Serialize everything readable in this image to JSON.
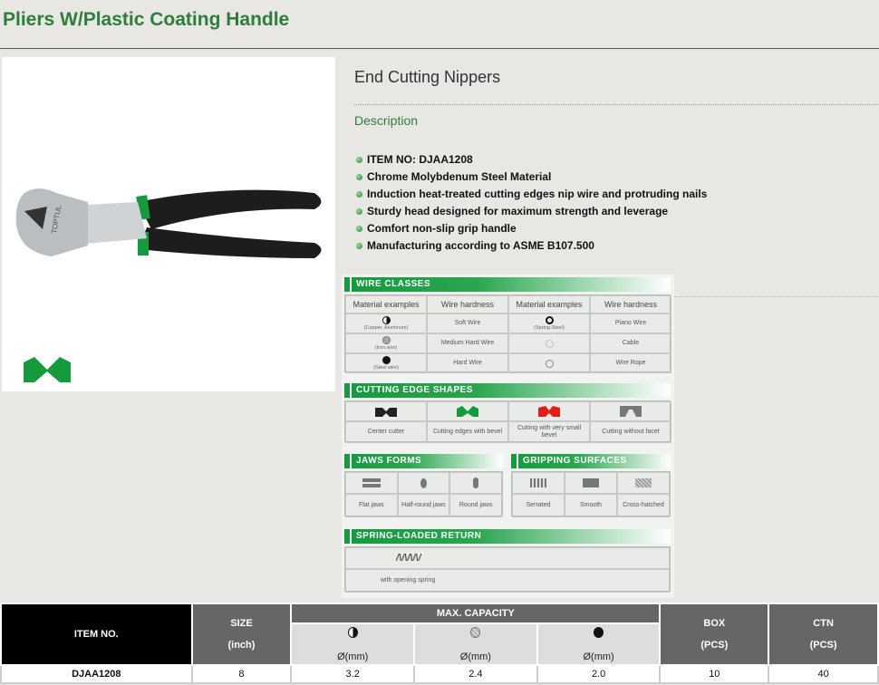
{
  "page": {
    "title": "Pliers W/Plastic Coating Handle"
  },
  "product": {
    "name": "End Cutting Nippers",
    "description_label": "Description",
    "brand_mark": "TOPTUL",
    "features": [
      "ITEM NO: DJAA1208",
      "Chrome Molybdenum Steel Material",
      "Induction heat-treated cutting edges nip wire and protruding nails",
      "Sturdy head designed for maximum strength and leverage",
      "Comfort non-slip grip handle",
      "Manufacturing according to ASME B107.500"
    ]
  },
  "infographic": {
    "wire_classes": {
      "title": "WIRE CLASSES",
      "headers": [
        "Material examples",
        "Wire hardness",
        "Material examples",
        "Wire hardness"
      ],
      "rows": [
        [
          "(Copper, Aluminum)",
          "Soft Wire",
          "(Spring Steel)",
          "Piano Wire"
        ],
        [
          "(Iron wire)",
          "Medium Hard Wire",
          "",
          "Cable"
        ],
        [
          "(Steel wire)",
          "Hard Wire",
          "",
          "Wire Rope"
        ]
      ]
    },
    "cutting_edge_shapes": {
      "title": "CUTTING EDGE SHAPES",
      "items": [
        {
          "label": "Center cutter",
          "color": "#222222"
        },
        {
          "label": "Cutting edges with bevel",
          "color": "#159a3e"
        },
        {
          "label": "Cutting with very small bevel",
          "color": "#e01e1e"
        },
        {
          "label": "Cutting without facet",
          "color": "#777777"
        }
      ]
    },
    "jaws_forms": {
      "title": "JAWS FORMS",
      "items": [
        "Flat jaws",
        "Half-round jaws",
        "Round jaws"
      ]
    },
    "gripping_surfaces": {
      "title": "GRIPPING SURFACES",
      "items": [
        "Serrated",
        "Smooth",
        "Cross-hatched"
      ]
    },
    "spring": {
      "title": "SPRING-LOADED RETURN",
      "label": "with opening spring"
    }
  },
  "spec_table": {
    "headers": {
      "item": "ITEM NO.",
      "size": "SIZE",
      "size_unit": "(inch)",
      "capacity": "MAX. CAPACITY",
      "cap_unit": "Ø(mm)",
      "box": "BOX",
      "ctn": "CTN",
      "pcs": "(PCS)"
    },
    "rows": [
      {
        "item": "DJAA1208",
        "size": "8",
        "soft": "3.2",
        "medium": "2.4",
        "hard": "2.0",
        "box": "10",
        "ctn": "40"
      }
    ]
  },
  "colors": {
    "accent": "#2d7d3c",
    "edge_icon": "#159a3e"
  }
}
